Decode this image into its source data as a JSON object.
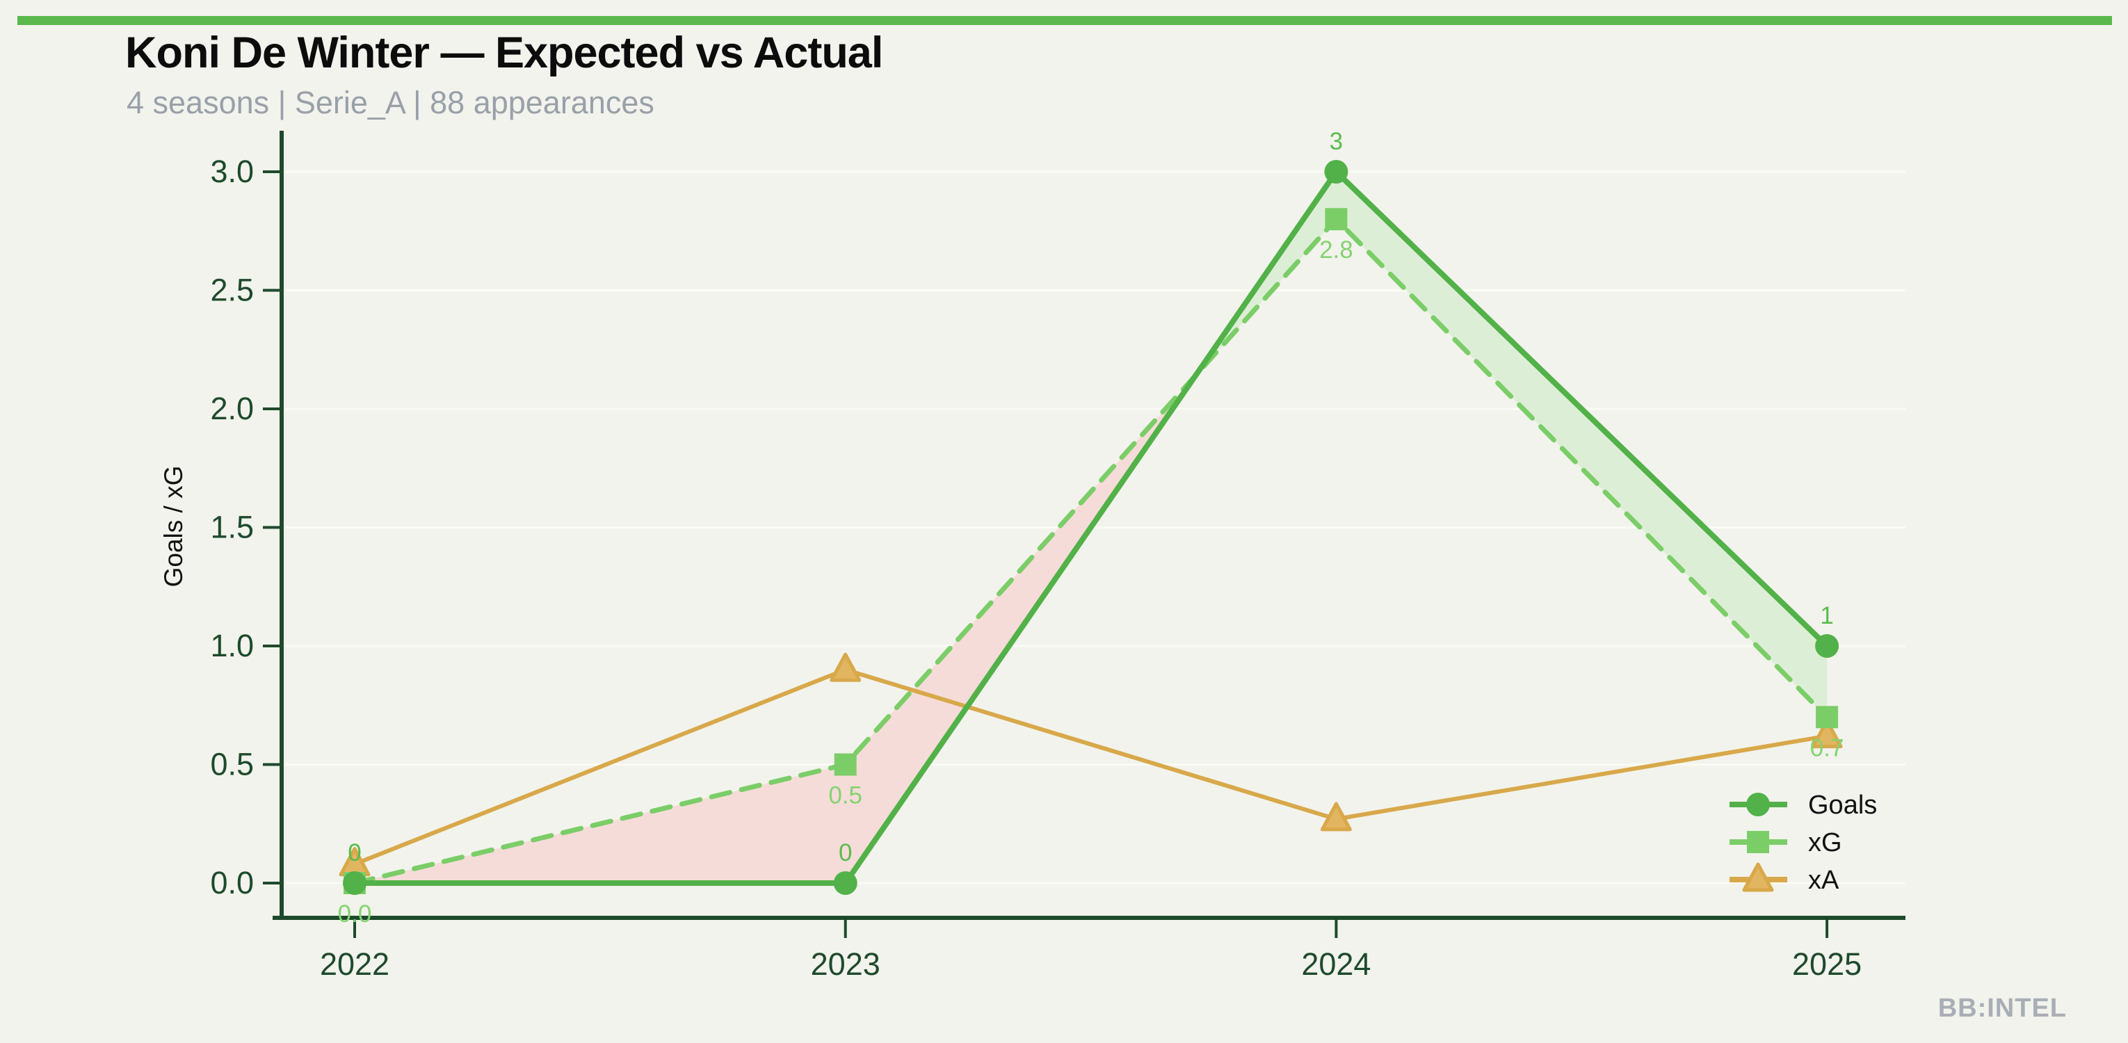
{
  "page": {
    "title": "Koni De Winter — Expected vs Actual",
    "subtitle": "4 seasons | Serie_A | 88 appearances",
    "watermark": "BB:INTEL"
  },
  "colors": {
    "background": "#f2f3ec",
    "top_bar": "#5bb84c",
    "title_text": "#0c0c0c",
    "subtitle_text": "#99a0a9",
    "axis": "#1e4a2c",
    "grid": "#fafbf3",
    "goals": "#52b148",
    "goals_label": "#5bbb4e",
    "xg": "#7bcd68",
    "xg_label": "#84d370",
    "xa": "#d8a84a",
    "xa_marker_fill": "#e2b560",
    "fill_over": "#ddeed6",
    "fill_under": "#f6dcd8",
    "watermark_text": "#a9aeb6",
    "ylabel_text": "#111111",
    "legend_text": "#111111"
  },
  "chart_data": {
    "type": "line",
    "title": "Koni De Winter — Expected vs Actual",
    "subtitle": "4 seasons | Serie_A | 88 appearances",
    "x_categories": [
      "2022",
      "2023",
      "2024",
      "2025"
    ],
    "series": [
      {
        "name": "Goals",
        "marker": "circle",
        "line_style": "solid",
        "values": [
          0,
          0,
          3,
          1
        ],
        "point_labels": [
          "0",
          "0",
          "3",
          "1"
        ]
      },
      {
        "name": "xG",
        "marker": "square",
        "line_style": "dashed",
        "values": [
          0.0,
          0.5,
          2.8,
          0.7
        ],
        "point_labels": [
          "0.0",
          "0.5",
          "2.8",
          "0.7"
        ]
      },
      {
        "name": "xA",
        "marker": "triangle",
        "line_style": "solid",
        "values": [
          0.08,
          0.9,
          0.27,
          0.62
        ],
        "point_labels": []
      }
    ],
    "ylabel": "Goals / xG",
    "yticks": [
      0.0,
      0.5,
      1.0,
      1.5,
      2.0,
      2.5,
      3.0
    ],
    "ytick_labels": [
      "0.0",
      "0.5",
      "1.0",
      "1.5",
      "2.0",
      "2.5",
      "3.0"
    ],
    "ylim": [
      -0.15,
      3.17
    ],
    "grid": "horizontal-faint",
    "legend_position": "lower-right",
    "legend_entries": [
      "Goals",
      "xG",
      "xA"
    ]
  }
}
